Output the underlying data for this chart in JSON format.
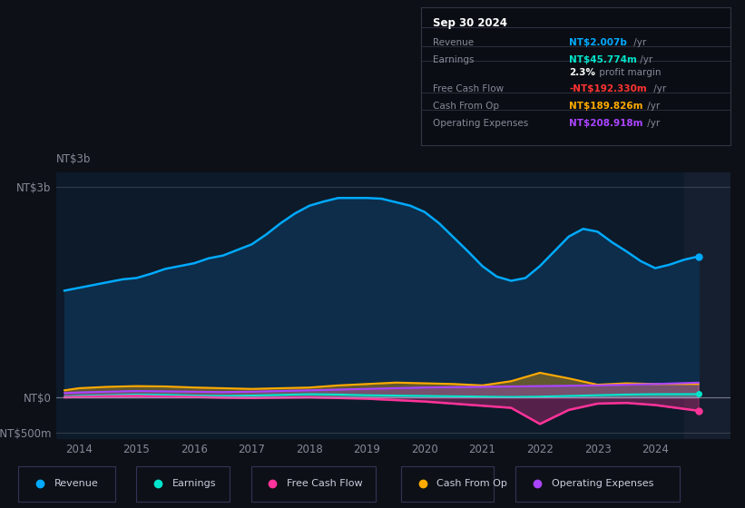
{
  "bg_color": "#0d1117",
  "plot_bg_color": "#0d1a2a",
  "plot_bg_dark": "#091420",
  "ylabel_label": "NT$3b",
  "ylim": [
    -600,
    3200
  ],
  "yticks": [
    -500,
    0,
    3000
  ],
  "ytick_labels": [
    "-NT$500m",
    "NT$0",
    "NT$3b"
  ],
  "xlim_start": 2013.6,
  "xlim_end": 2025.3,
  "xticks": [
    2014,
    2015,
    2016,
    2017,
    2018,
    2019,
    2020,
    2021,
    2022,
    2023,
    2024
  ],
  "shaded_start": 2024.5,
  "colors": {
    "revenue": "#00aaff",
    "revenue_fill": "#0d2d4a",
    "earnings": "#00e5cc",
    "free_cash_flow": "#ff3399",
    "cash_from_op": "#ffaa00",
    "operating_expenses": "#aa44ff"
  },
  "legend": [
    {
      "label": "Revenue",
      "color": "#00aaff"
    },
    {
      "label": "Earnings",
      "color": "#00e5cc"
    },
    {
      "label": "Free Cash Flow",
      "color": "#ff3399"
    },
    {
      "label": "Cash From Op",
      "color": "#ffaa00"
    },
    {
      "label": "Operating Expenses",
      "color": "#aa44ff"
    }
  ],
  "revenue_x": [
    2013.75,
    2014.0,
    2014.25,
    2014.5,
    2014.75,
    2015.0,
    2015.25,
    2015.5,
    2015.75,
    2016.0,
    2016.25,
    2016.5,
    2016.75,
    2017.0,
    2017.25,
    2017.5,
    2017.75,
    2018.0,
    2018.25,
    2018.5,
    2018.75,
    2019.0,
    2019.25,
    2019.5,
    2019.75,
    2020.0,
    2020.25,
    2020.5,
    2020.75,
    2021.0,
    2021.25,
    2021.5,
    2021.75,
    2022.0,
    2022.25,
    2022.5,
    2022.75,
    2023.0,
    2023.25,
    2023.5,
    2023.75,
    2024.0,
    2024.25,
    2024.5,
    2024.75
  ],
  "revenue_y": [
    1520,
    1560,
    1600,
    1640,
    1680,
    1700,
    1760,
    1830,
    1870,
    1910,
    1980,
    2020,
    2100,
    2180,
    2320,
    2480,
    2620,
    2730,
    2790,
    2840,
    2840,
    2840,
    2830,
    2780,
    2730,
    2640,
    2480,
    2280,
    2080,
    1870,
    1720,
    1660,
    1700,
    1870,
    2080,
    2290,
    2400,
    2360,
    2210,
    2080,
    1940,
    1840,
    1890,
    1960,
    2007
  ],
  "earnings_x": [
    2013.75,
    2014.0,
    2014.5,
    2015.0,
    2015.5,
    2016.0,
    2016.5,
    2017.0,
    2017.5,
    2018.0,
    2018.5,
    2019.0,
    2019.5,
    2020.0,
    2020.5,
    2021.0,
    2021.5,
    2022.0,
    2022.5,
    2023.0,
    2023.5,
    2024.0,
    2024.75
  ],
  "earnings_y": [
    10,
    20,
    30,
    40,
    35,
    25,
    20,
    25,
    35,
    45,
    40,
    30,
    25,
    20,
    15,
    10,
    5,
    10,
    20,
    30,
    40,
    45,
    46
  ],
  "fcf_x": [
    2013.75,
    2014.0,
    2014.5,
    2015.0,
    2015.5,
    2016.0,
    2016.5,
    2017.0,
    2017.5,
    2018.0,
    2018.5,
    2019.0,
    2019.5,
    2020.0,
    2020.5,
    2021.0,
    2021.5,
    2022.0,
    2022.5,
    2023.0,
    2023.5,
    2024.0,
    2024.75
  ],
  "fcf_y": [
    0,
    5,
    15,
    20,
    10,
    5,
    -5,
    -10,
    -5,
    0,
    -10,
    -20,
    -40,
    -60,
    -90,
    -120,
    -150,
    -380,
    -180,
    -90,
    -80,
    -110,
    -192
  ],
  "cfo_x": [
    2013.75,
    2014.0,
    2014.5,
    2015.0,
    2015.5,
    2016.0,
    2016.5,
    2017.0,
    2017.5,
    2018.0,
    2018.5,
    2019.0,
    2019.5,
    2020.0,
    2020.5,
    2021.0,
    2021.5,
    2022.0,
    2022.5,
    2023.0,
    2023.5,
    2024.0,
    2024.75
  ],
  "cfo_y": [
    100,
    130,
    150,
    160,
    155,
    140,
    130,
    120,
    130,
    140,
    170,
    190,
    210,
    200,
    190,
    170,
    230,
    350,
    270,
    180,
    200,
    190,
    190
  ],
  "oe_x": [
    2013.75,
    2014.0,
    2014.5,
    2015.0,
    2015.5,
    2016.0,
    2016.5,
    2017.0,
    2017.5,
    2018.0,
    2018.5,
    2019.0,
    2019.5,
    2020.0,
    2020.5,
    2021.0,
    2021.5,
    2022.0,
    2022.5,
    2023.0,
    2023.5,
    2024.0,
    2024.75
  ],
  "oe_y": [
    60,
    70,
    80,
    90,
    85,
    80,
    75,
    80,
    90,
    100,
    110,
    120,
    130,
    140,
    145,
    150,
    155,
    160,
    165,
    170,
    180,
    190,
    209
  ],
  "info_title": "Sep 30 2024",
  "info_rows": [
    {
      "label": "Revenue",
      "value": "NT$2.007b",
      "suffix": " /yr",
      "value_color": "#00aaff"
    },
    {
      "label": "Earnings",
      "value": "NT$45.774m",
      "suffix": " /yr",
      "value_color": "#00e5cc"
    },
    {
      "label": "",
      "value": "2.3%",
      "suffix": " profit margin",
      "value_color": "#ffffff"
    },
    {
      "label": "Free Cash Flow",
      "value": "-NT$192.330m",
      "suffix": " /yr",
      "value_color": "#ff3333"
    },
    {
      "label": "Cash From Op",
      "value": "NT$189.826m",
      "suffix": " /yr",
      "value_color": "#ffaa00"
    },
    {
      "label": "Operating Expenses",
      "value": "NT$208.918m",
      "suffix": " /yr",
      "value_color": "#aa44ff"
    }
  ]
}
